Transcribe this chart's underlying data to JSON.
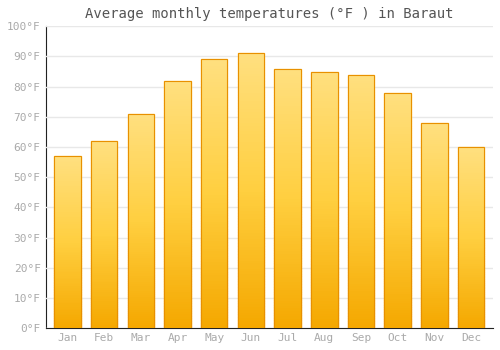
{
  "title": "Average monthly temperatures (°F ) in Baraut",
  "months": [
    "Jan",
    "Feb",
    "Mar",
    "Apr",
    "May",
    "Jun",
    "Jul",
    "Aug",
    "Sep",
    "Oct",
    "Nov",
    "Dec"
  ],
  "values": [
    57,
    62,
    71,
    82,
    89,
    91,
    86,
    85,
    84,
    78,
    68,
    60
  ],
  "bar_color_bottom": "#F5A800",
  "bar_color_mid": "#FFCF40",
  "bar_color_top": "#FFE080",
  "bar_edge_color": "#E89000",
  "background_color": "#FFFFFF",
  "grid_color": "#E8E8E8",
  "text_color": "#AAAAAA",
  "title_color": "#555555",
  "ylim": [
    0,
    100
  ],
  "ytick_step": 10,
  "title_fontsize": 10,
  "tick_fontsize": 8
}
